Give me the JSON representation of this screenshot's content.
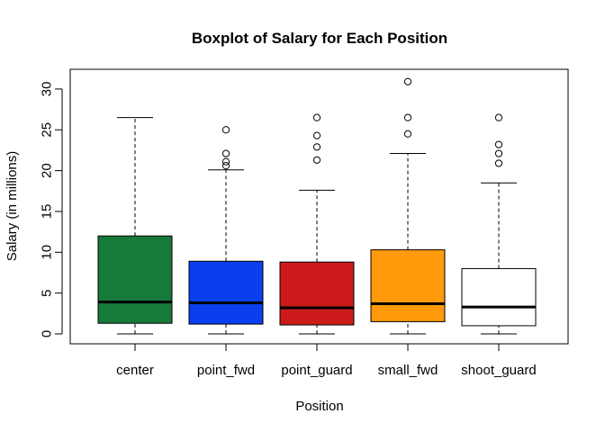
{
  "chart_data": {
    "type": "boxplot",
    "title": "Boxplot of Salary for Each Position",
    "xlabel": "Position",
    "ylabel": "Salary (in millions)",
    "ylim": [
      0,
      32
    ],
    "yticks": [
      0,
      5,
      10,
      15,
      20,
      25,
      30
    ],
    "categories": [
      "center",
      "point_fwd",
      "point_guard",
      "small_fwd",
      "shoot_guard"
    ],
    "boxes": [
      {
        "category": "center",
        "color": "#167a3a",
        "min": 0.0,
        "q1": 1.3,
        "median": 3.9,
        "q3": 12.0,
        "max": 26.5,
        "outliers": []
      },
      {
        "category": "point_fwd",
        "color": "#0a3ff0",
        "min": 0.0,
        "q1": 1.2,
        "median": 3.8,
        "q3": 8.9,
        "max": 20.1,
        "outliers": [
          20.6,
          21.1,
          22.1,
          25.0
        ]
      },
      {
        "category": "point_guard",
        "color": "#cc1a1a",
        "min": 0.0,
        "q1": 1.1,
        "median": 3.2,
        "q3": 8.8,
        "max": 17.6,
        "outliers": [
          21.3,
          22.9,
          24.3,
          26.5
        ]
      },
      {
        "category": "small_fwd",
        "color": "#ff9a0a",
        "min": 0.0,
        "q1": 1.5,
        "median": 3.7,
        "q3": 10.3,
        "max": 22.1,
        "outliers": [
          24.5,
          26.5,
          30.9
        ]
      },
      {
        "category": "shoot_guard",
        "color": "#ffffff",
        "min": 0.0,
        "q1": 1.0,
        "median": 3.3,
        "q3": 8.0,
        "max": 18.5,
        "outliers": [
          20.9,
          22.1,
          23.2,
          26.5
        ]
      }
    ]
  }
}
